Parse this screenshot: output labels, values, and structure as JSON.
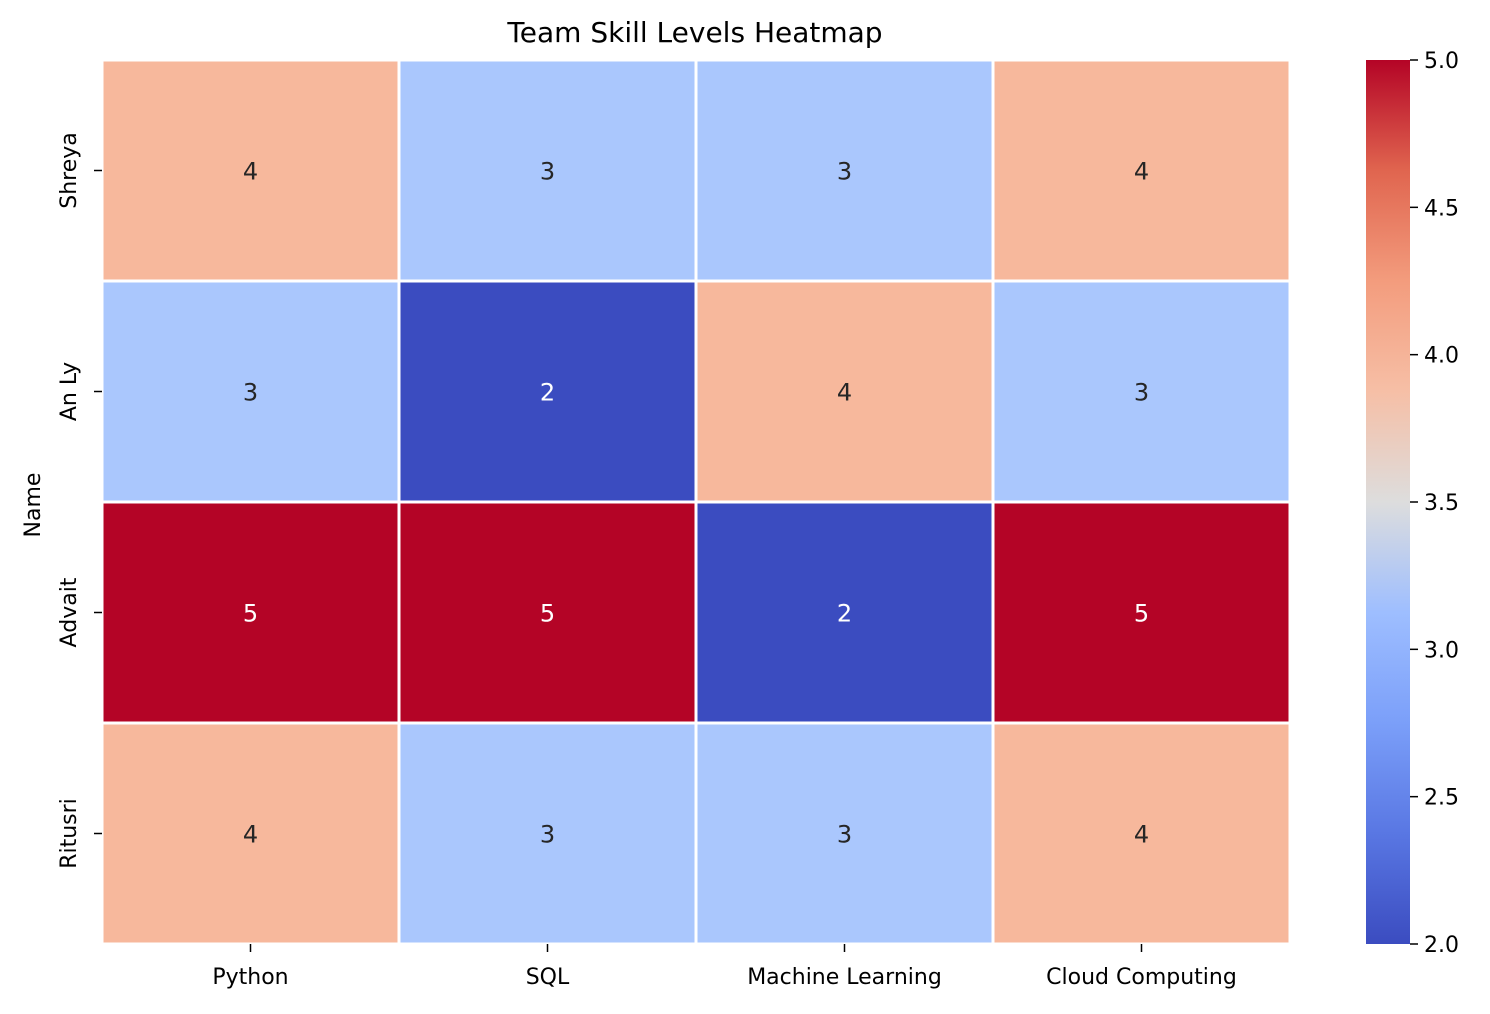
{
  "chart_data": {
    "type": "heatmap",
    "title": "Team Skill Levels Heatmap",
    "xlabel": "",
    "ylabel": "Name",
    "x_categories": [
      "Python",
      "SQL",
      "Machine Learning",
      "Cloud Computing"
    ],
    "y_categories": [
      "Shreya",
      "An Ly",
      "Advait",
      "Ritusri"
    ],
    "values": [
      [
        4,
        3,
        3,
        4
      ],
      [
        3,
        2,
        4,
        3
      ],
      [
        5,
        5,
        2,
        5
      ],
      [
        4,
        3,
        3,
        4
      ]
    ],
    "annotations": true,
    "colormap": "coolwarm",
    "color_range": [
      2.0,
      5.0
    ],
    "colorbar_ticks": [
      "2.0",
      "2.5",
      "3.0",
      "3.5",
      "4.0",
      "4.5",
      "5.0"
    ],
    "colors": {
      "low": "#3b4cc0",
      "mid": "#dddddd",
      "high": "#b40426",
      "cell_border": "#ffffff",
      "text_dark": "#262626",
      "text_light": "#ffffff"
    }
  }
}
